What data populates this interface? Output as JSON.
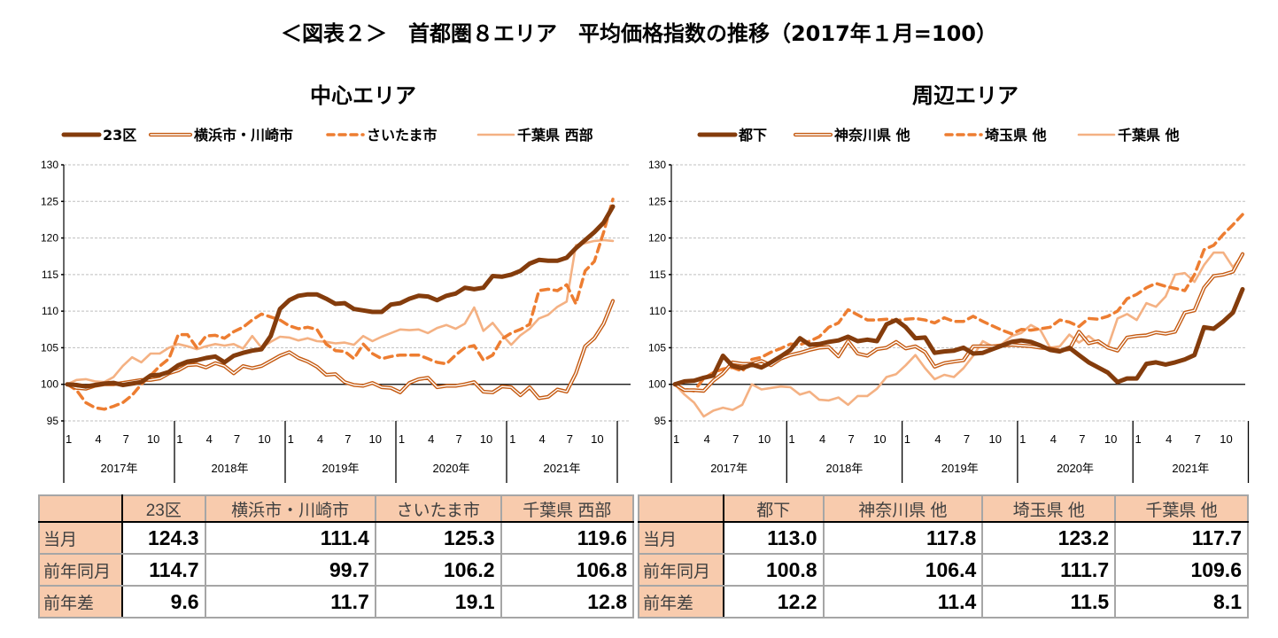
{
  "title": "＜図表２＞　首都圏８エリア　平均価格指数の推移（2017年１月=100）",
  "colors": {
    "s1": "#843C0C",
    "s2": "#C55A11",
    "s3": "#ED7D31",
    "s4": "#F4B183",
    "grid": "#bfbfbf",
    "header_fill": "#F8CBAD"
  },
  "chart_data": [
    {
      "type": "line",
      "title": "中心エリア",
      "ylim": [
        95,
        130
      ],
      "yticks": [
        95,
        100,
        105,
        110,
        115,
        120,
        125,
        130
      ],
      "grid": true,
      "legend_placement": "top",
      "month_ticks": [
        "1",
        "4",
        "7",
        "10"
      ],
      "years": [
        "2017年",
        "2018年",
        "2019年",
        "2020年",
        "2021年"
      ],
      "series": [
        {
          "name": "23区",
          "style": "thick",
          "values": [
            100,
            99.9,
            99.7,
            99.9,
            100.1,
            100.2,
            99.9,
            100.1,
            100.3,
            101.2,
            101.3,
            101.7,
            102.6,
            103.1,
            103.3,
            103.6,
            103.8,
            103.0,
            103.9,
            104.3,
            104.6,
            104.8,
            106.6,
            110.3,
            111.5,
            112.1,
            112.3,
            112.3,
            111.7,
            111.0,
            111.1,
            110.3,
            110.1,
            109.9,
            109.9,
            110.9,
            111.1,
            111.7,
            112.1,
            112.0,
            111.5,
            112.1,
            112.4,
            113.2,
            113.0,
            113.2,
            114.8,
            114.7,
            115.0,
            115.5,
            116.5,
            117.0,
            116.9,
            116.9,
            117.3,
            118.6,
            119.7,
            120.8,
            122.1,
            124.3
          ]
        },
        {
          "name": "横浜市・川崎市",
          "style": "double",
          "values": [
            100,
            99.5,
            99.4,
            99.8,
            100.0,
            100.0,
            100.2,
            100.4,
            100.6,
            100.6,
            100.8,
            101.5,
            101.9,
            102.6,
            102.7,
            102.3,
            102.9,
            102.5,
            101.5,
            102.5,
            102.2,
            102.5,
            103.2,
            103.9,
            104.4,
            103.6,
            103.1,
            102.4,
            101.3,
            101.4,
            100.3,
            99.9,
            99.8,
            100.2,
            99.6,
            99.5,
            98.9,
            100.2,
            100.7,
            100.9,
            99.6,
            99.8,
            99.8,
            100.0,
            100.3,
            99.0,
            98.9,
            99.7,
            99.6,
            98.5,
            99.6,
            98.1,
            98.3,
            99.3,
            99.0,
            101.5,
            105.2,
            106.3,
            108.3,
            111.4
          ]
        },
        {
          "name": "さいたま市",
          "style": "dashed",
          "values": [
            100,
            99.2,
            97.5,
            96.8,
            96.6,
            97.0,
            97.5,
            98.5,
            100.0,
            101.2,
            102.5,
            103.5,
            106.8,
            106.8,
            105.0,
            106.6,
            106.7,
            106.3,
            107.2,
            107.8,
            108.8,
            109.6,
            109.2,
            108.8,
            108.0,
            107.6,
            107.8,
            107.5,
            105.5,
            104.6,
            104.5,
            103.5,
            105.5,
            104.2,
            103.5,
            103.8,
            104.0,
            104.0,
            104.0,
            103.5,
            103.0,
            102.8,
            104.0,
            105.0,
            105.3,
            103.3,
            104.0,
            106.2,
            107.0,
            107.5,
            108.2,
            112.8,
            113.0,
            112.8,
            113.6,
            111.0,
            115.5,
            116.8,
            120.8,
            125.3
          ]
        },
        {
          "name": "千葉県 西部",
          "style": "light",
          "values": [
            100,
            100.6,
            100.7,
            100.4,
            100.3,
            101.0,
            102.5,
            103.7,
            103.0,
            104.2,
            104.2,
            105.0,
            105.5,
            105.2,
            104.8,
            105.2,
            105.5,
            105.3,
            105.5,
            104.9,
            106.6,
            105.0,
            105.8,
            106.5,
            106.4,
            106.0,
            106.3,
            105.9,
            105.8,
            105.6,
            105.7,
            105.4,
            106.6,
            105.9,
            106.5,
            107.0,
            107.5,
            107.4,
            107.5,
            107.0,
            107.7,
            108.1,
            107.6,
            108.3,
            110.5,
            107.3,
            108.4,
            106.8,
            105.4,
            106.7,
            107.6,
            109.0,
            109.5,
            110.6,
            111.3,
            119.0,
            119.3,
            119.6,
            119.7,
            119.6
          ]
        }
      ],
      "table": {
        "columns": [
          "23区",
          "横浜市・川崎市",
          "さいたま市",
          "千葉県 西部"
        ],
        "rows": [
          {
            "label": "当月",
            "values": [
              "124.3",
              "111.4",
              "125.3",
              "119.6"
            ]
          },
          {
            "label": "前年同月",
            "values": [
              "114.7",
              "99.7",
              "106.2",
              "106.8"
            ]
          },
          {
            "label": "前年差",
            "values": [
              "9.6",
              "11.7",
              "19.1",
              "12.8"
            ]
          }
        ]
      }
    },
    {
      "type": "line",
      "title": "周辺エリア",
      "ylim": [
        95,
        130
      ],
      "yticks": [
        95,
        100,
        105,
        110,
        115,
        120,
        125,
        130
      ],
      "grid": true,
      "legend_placement": "top",
      "month_ticks": [
        "1",
        "4",
        "7",
        "10"
      ],
      "years": [
        "2017年",
        "2018年",
        "2019年",
        "2020年",
        "2021年"
      ],
      "series": [
        {
          "name": "都下",
          "style": "thick",
          "values": [
            100,
            100.4,
            100.5,
            100.9,
            101.2,
            103.9,
            102.5,
            102.2,
            102.7,
            102.3,
            103.0,
            103.8,
            104.7,
            106.3,
            105.4,
            105.5,
            105.8,
            106.0,
            106.5,
            105.9,
            106.1,
            105.9,
            108.2,
            108.8,
            107.8,
            106.3,
            106.4,
            104.3,
            104.5,
            104.6,
            105.0,
            104.2,
            104.3,
            104.8,
            105.3,
            105.8,
            106.0,
            105.8,
            105.3,
            104.7,
            104.5,
            105.0,
            104.0,
            103.0,
            102.3,
            101.6,
            100.3,
            100.8,
            100.8,
            102.8,
            103.0,
            102.7,
            103.0,
            103.4,
            104.0,
            107.8,
            107.6,
            108.6,
            109.8,
            113.0
          ]
        },
        {
          "name": "神奈川県 他",
          "style": "double",
          "values": [
            100,
            99.2,
            99.2,
            99.1,
            100.5,
            101.5,
            103.0,
            102.8,
            102.8,
            103.2,
            102.6,
            103.5,
            104.0,
            104.3,
            104.7,
            105.0,
            105.1,
            103.8,
            105.9,
            104.2,
            103.9,
            104.8,
            105.0,
            105.8,
            104.9,
            105.2,
            104.4,
            102.4,
            102.9,
            103.1,
            103.3,
            105.2,
            105.2,
            105.2,
            105.3,
            105.4,
            105.3,
            105.2,
            105.0,
            104.9,
            104.6,
            104.8,
            107.2,
            105.6,
            105.9,
            105.0,
            104.6,
            106.4,
            106.6,
            106.7,
            107.1,
            106.9,
            107.2,
            109.8,
            110.1,
            113.2,
            114.8,
            115.0,
            115.4,
            117.8
          ]
        },
        {
          "name": "埼玉県 他",
          "style": "dashed",
          "values": [
            100,
            99.3,
            99.1,
            100.8,
            101.6,
            102.1,
            102.3,
            101.8,
            103.4,
            103.7,
            104.4,
            104.9,
            105.5,
            105.4,
            105.9,
            106.5,
            107.8,
            108.4,
            110.2,
            109.5,
            108.8,
            108.8,
            108.9,
            108.7,
            108.9,
            109.0,
            108.8,
            108.4,
            109.1,
            108.6,
            108.6,
            109.3,
            108.6,
            108.0,
            107.4,
            106.9,
            107.5,
            107.4,
            107.6,
            107.8,
            108.8,
            108.5,
            107.9,
            109.0,
            108.9,
            109.3,
            110.0,
            111.7,
            112.3,
            113.2,
            113.8,
            113.4,
            113.1,
            112.8,
            115.0,
            118.4,
            119.0,
            120.5,
            121.8,
            123.2
          ]
        },
        {
          "name": "千葉県 他",
          "style": "light",
          "values": [
            100,
            98.6,
            97.5,
            95.6,
            96.4,
            96.8,
            96.5,
            97.2,
            100.0,
            99.3,
            99.5,
            99.7,
            99.6,
            98.6,
            99.0,
            97.9,
            97.8,
            98.2,
            97.2,
            98.4,
            98.4,
            99.4,
            101.0,
            101.4,
            102.6,
            104.0,
            102.2,
            100.7,
            101.3,
            101.0,
            102.2,
            103.9,
            105.9,
            105.2,
            105.5,
            106.6,
            107.0,
            108.1,
            107.4,
            105.0,
            105.2,
            106.8,
            105.7,
            106.6,
            105.6,
            105.1,
            109.0,
            109.6,
            108.8,
            111.1,
            110.6,
            112.0,
            115.0,
            115.2,
            114.0,
            116.3,
            118.0,
            118.0,
            116.0,
            117.7
          ]
        }
      ],
      "table": {
        "columns": [
          "都下",
          "神奈川県 他",
          "埼玉県 他",
          "千葉県 他"
        ],
        "rows": [
          {
            "label": "当月",
            "values": [
              "113.0",
              "117.8",
              "123.2",
              "117.7"
            ]
          },
          {
            "label": "前年同月",
            "values": [
              "100.8",
              "106.4",
              "111.7",
              "109.6"
            ]
          },
          {
            "label": "前年差",
            "values": [
              "12.2",
              "11.4",
              "11.5",
              "8.1"
            ]
          }
        ]
      }
    }
  ]
}
